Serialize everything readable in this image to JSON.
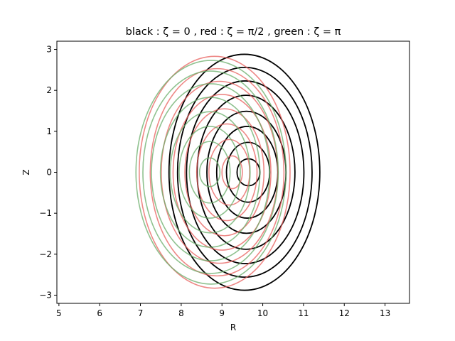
{
  "chart_data": {
    "type": "line",
    "title": "black : ζ = 0 , red : ζ = π/2 , green : ζ = π",
    "xlabel": "R",
    "ylabel": "Z",
    "xlim": [
      4.95,
      13.6
    ],
    "ylim": [
      -3.2,
      3.2
    ],
    "xticks": [
      5,
      6,
      7,
      8,
      9,
      10,
      11,
      12,
      13
    ],
    "yticks": [
      -3,
      -2,
      -1,
      0,
      1,
      2,
      3
    ],
    "grid": false,
    "legend": "none",
    "series": [
      {
        "color": "#000000",
        "alpha": 1.0,
        "surfaces": [
          {
            "cx": 9.65,
            "rx": 0.28,
            "rz": 0.33
          },
          {
            "cx": 9.64,
            "rx": 0.53,
            "rz": 0.73
          },
          {
            "cx": 9.62,
            "rx": 0.75,
            "rz": 1.12
          },
          {
            "cx": 9.6,
            "rx": 0.97,
            "rz": 1.49
          },
          {
            "cx": 9.59,
            "rx": 1.2,
            "rz": 1.88
          },
          {
            "cx": 9.57,
            "rx": 1.44,
            "rz": 2.23
          },
          {
            "cx": 9.56,
            "rx": 1.65,
            "rz": 2.56
          },
          {
            "cx": 9.55,
            "rx": 1.85,
            "rz": 2.88
          }
        ]
      },
      {
        "color": "#e8605d",
        "alpha": 0.75,
        "surfaces": [
          {
            "cx": 9.25,
            "rx": 0.25,
            "rz": 0.4
          },
          {
            "cx": 9.18,
            "rx": 0.5,
            "rz": 0.8
          },
          {
            "cx": 9.12,
            "rx": 0.74,
            "rz": 1.18
          },
          {
            "cx": 9.06,
            "rx": 0.97,
            "rz": 1.55
          },
          {
            "cx": 9.0,
            "rx": 1.2,
            "rz": 1.9
          },
          {
            "cx": 8.94,
            "rx": 1.43,
            "rz": 2.22
          },
          {
            "cx": 8.88,
            "rx": 1.64,
            "rz": 2.53
          },
          {
            "cx": 8.82,
            "rx": 1.85,
            "rz": 2.83
          }
        ]
      },
      {
        "color": "#6aad6a",
        "alpha": 0.75,
        "surfaces": [
          {
            "cx": 8.7,
            "rx": 0.25,
            "rz": 0.35
          },
          {
            "cx": 8.7,
            "rx": 0.5,
            "rz": 0.75
          },
          {
            "cx": 8.7,
            "rx": 0.75,
            "rz": 1.12
          },
          {
            "cx": 8.71,
            "rx": 0.98,
            "rz": 1.48
          },
          {
            "cx": 8.71,
            "rx": 1.22,
            "rz": 1.83
          },
          {
            "cx": 8.72,
            "rx": 1.45,
            "rz": 2.16
          },
          {
            "cx": 8.72,
            "rx": 1.66,
            "rz": 2.47
          },
          {
            "cx": 8.73,
            "rx": 1.84,
            "rz": 2.73
          }
        ]
      }
    ]
  }
}
